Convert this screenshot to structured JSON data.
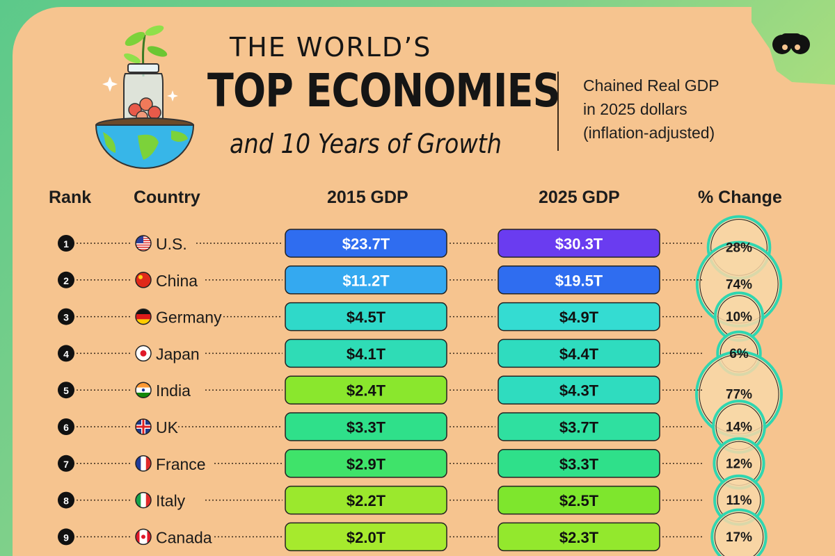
{
  "title": {
    "line1": "THE WORLD’S",
    "line2": "TOP ECONOMIES",
    "line3": "and 10 Years of Growth"
  },
  "note": {
    "line1": "Chained Real GDP",
    "line2": "in 2025 dollars",
    "line3": "(inflation-adjusted)"
  },
  "headers": {
    "rank": "Rank",
    "country": "Country",
    "gdp_2015": "2015 GDP",
    "gdp_2025": "2025 GDP",
    "change": "% Change"
  },
  "colors": {
    "background_panel": "#f6c48f",
    "text": "#1a1a1a",
    "ring": "#2fd6b0"
  },
  "chart_data": {
    "type": "table",
    "rows": [
      {
        "rank": "1",
        "country": "U.S.",
        "gdp_2015": 23.7,
        "gdp_2025": 30.3,
        "change": 28,
        "label_2015": "$23.7T",
        "label_2025": "$30.3T",
        "label_change": "28%",
        "color_2015": "#2f6df0",
        "color_2025": "#6a3cf0",
        "flag_icon": "flag-us-icon"
      },
      {
        "rank": "2",
        "country": "China",
        "gdp_2015": 11.2,
        "gdp_2025": 19.5,
        "change": 74,
        "label_2015": "$11.2T",
        "label_2025": "$19.5T",
        "label_change": "74%",
        "color_2015": "#34a9f0",
        "color_2025": "#2f6df0",
        "flag_icon": "flag-china-icon"
      },
      {
        "rank": "3",
        "country": "Germany",
        "gdp_2015": 4.5,
        "gdp_2025": 4.9,
        "change": 10,
        "label_2015": "$4.5T",
        "label_2025": "$4.9T",
        "label_change": "10%",
        "color_2015": "#2fd9c9",
        "color_2025": "#34dcd2",
        "flag_icon": "flag-germany-icon"
      },
      {
        "rank": "4",
        "country": "Japan",
        "gdp_2015": 4.1,
        "gdp_2025": 4.4,
        "change": 6,
        "label_2015": "$4.1T",
        "label_2025": "$4.4T",
        "label_change": "6%",
        "color_2015": "#2fdcb6",
        "color_2025": "#2fdcbf",
        "flag_icon": "flag-japan-icon"
      },
      {
        "rank": "5",
        "country": "India",
        "gdp_2015": 2.4,
        "gdp_2025": 4.3,
        "change": 77,
        "label_2015": "$2.4T",
        "label_2025": "$4.3T",
        "label_change": "77%",
        "color_2015": "#8ae72d",
        "color_2025": "#2fdcbf",
        "flag_icon": "flag-india-icon"
      },
      {
        "rank": "6",
        "country": "UK",
        "gdp_2015": 3.3,
        "gdp_2025": 3.7,
        "change": 14,
        "label_2015": "$3.3T",
        "label_2025": "$3.7T",
        "label_change": "14%",
        "color_2015": "#2fe08a",
        "color_2025": "#2fe0a0",
        "flag_icon": "flag-uk-icon"
      },
      {
        "rank": "7",
        "country": "France",
        "gdp_2015": 2.9,
        "gdp_2025": 3.3,
        "change": 12,
        "label_2015": "$2.9T",
        "label_2025": "$3.3T",
        "label_change": "12%",
        "color_2015": "#3fe36a",
        "color_2025": "#2fe08a",
        "flag_icon": "flag-france-icon"
      },
      {
        "rank": "8",
        "country": "Italy",
        "gdp_2015": 2.2,
        "gdp_2025": 2.5,
        "change": 11,
        "label_2015": "$2.2T",
        "label_2025": "$2.5T",
        "label_change": "11%",
        "color_2015": "#9be82d",
        "color_2025": "#7ee62d",
        "flag_icon": "flag-italy-icon"
      },
      {
        "rank": "9",
        "country": "Canada",
        "gdp_2015": 2.0,
        "gdp_2025": 2.3,
        "change": 17,
        "label_2015": "$2.0T",
        "label_2025": "$2.3T",
        "label_change": "17%",
        "color_2015": "#a6ea2d",
        "color_2025": "#93e82d",
        "flag_icon": "flag-canada-icon"
      }
    ]
  }
}
